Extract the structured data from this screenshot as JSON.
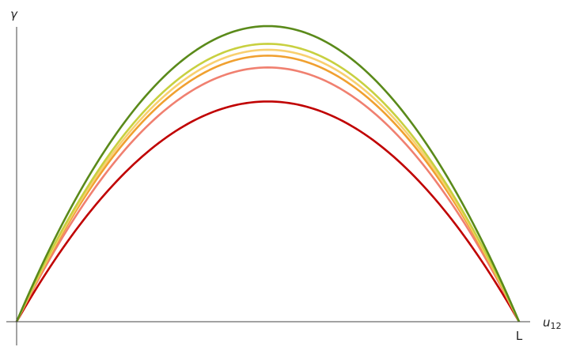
{
  "chart_data": {
    "type": "line",
    "ylabel": "γ",
    "xlabel_base": "u",
    "xlabel_sub": "12",
    "xticks": [
      {
        "value": 1,
        "label": "L"
      }
    ],
    "xlim": [
      0,
      1
    ],
    "ylim": [
      0,
      1
    ],
    "grid": false,
    "legend": "none",
    "series": [
      {
        "color": "#c00000",
        "peak": 0.745
      },
      {
        "color": "#f08070",
        "peak": 0.86
      },
      {
        "color": "#f0a030",
        "peak": 0.9
      },
      {
        "color": "#f8d070",
        "peak": 0.92
      },
      {
        "color": "#c8d040",
        "peak": 0.94
      },
      {
        "color": "#5a8a1a",
        "peak": 1.0
      }
    ]
  }
}
